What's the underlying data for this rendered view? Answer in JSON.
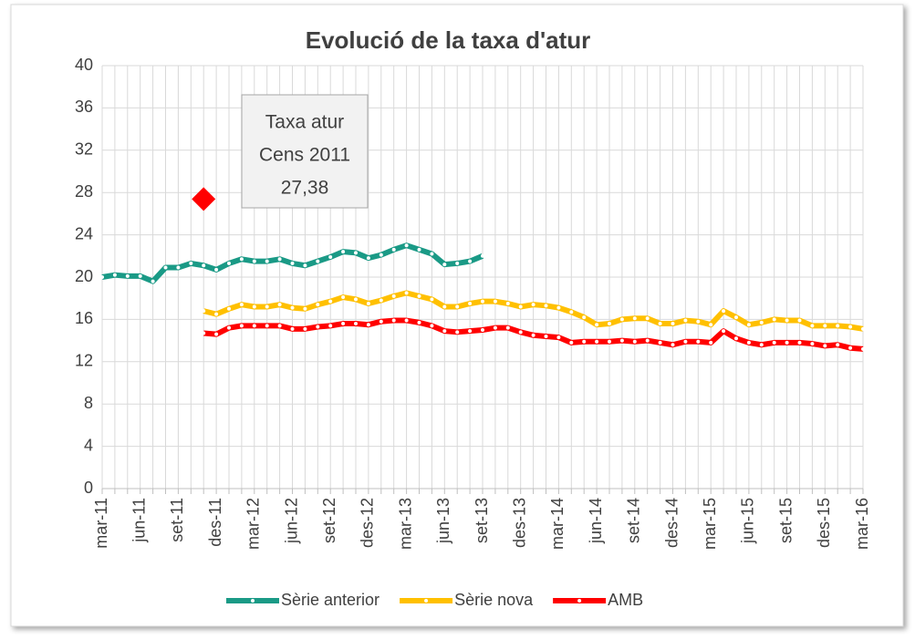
{
  "chart_data": {
    "type": "line",
    "title": "Evolució de la taxa d'atur",
    "categories": [
      "mar-11",
      null,
      null,
      "jun-11",
      null,
      null,
      "set-11",
      null,
      null,
      "des-11",
      null,
      null,
      "mar-12",
      null,
      null,
      "jun-12",
      null,
      null,
      "set-12",
      null,
      null,
      "des-12",
      null,
      null,
      "mar-13",
      null,
      null,
      "jun-13",
      null,
      null,
      "set-13",
      null,
      null,
      "des-13",
      null,
      null,
      "mar-14",
      null,
      null,
      "jun-14",
      null,
      null,
      "set-14",
      null,
      null,
      "des-14",
      null,
      null,
      "mar-15",
      null,
      null,
      "jun-15",
      null,
      null,
      "set-15",
      null,
      null,
      "des-15",
      null,
      null,
      "mar-16"
    ],
    "series": [
      {
        "name": "Sèrie anterior",
        "color": "#1a9a86",
        "values": [
          20.0,
          20.2,
          20.1,
          20.1,
          19.6,
          20.9,
          20.9,
          21.3,
          21.1,
          20.7,
          21.3,
          21.7,
          21.5,
          21.5,
          21.7,
          21.3,
          21.1,
          21.5,
          21.9,
          22.4,
          22.3,
          21.8,
          22.1,
          22.6,
          23.0,
          22.6,
          22.2,
          21.2,
          21.3,
          21.5,
          22.0,
          null,
          null,
          null,
          null,
          null,
          null,
          null,
          null,
          null,
          null,
          null,
          null,
          null,
          null,
          null,
          null,
          null,
          null,
          null,
          null,
          null,
          null,
          null,
          null,
          null,
          null,
          null,
          null,
          null,
          null
        ]
      },
      {
        "name": "Sèrie nova",
        "color": "#ffc000",
        "values": [
          null,
          null,
          null,
          null,
          null,
          null,
          null,
          null,
          16.8,
          16.5,
          17.0,
          17.4,
          17.2,
          17.2,
          17.4,
          17.1,
          17.0,
          17.4,
          17.7,
          18.1,
          17.9,
          17.5,
          17.8,
          18.2,
          18.5,
          18.2,
          17.9,
          17.2,
          17.2,
          17.5,
          17.7,
          17.7,
          17.5,
          17.2,
          17.4,
          17.3,
          17.1,
          16.7,
          16.2,
          15.5,
          15.6,
          16.0,
          16.1,
          16.1,
          15.6,
          15.6,
          15.9,
          15.8,
          15.5,
          16.8,
          16.2,
          15.5,
          15.7,
          16.0,
          15.9,
          15.9,
          15.4,
          15.4,
          15.4,
          15.3,
          15.1
        ]
      },
      {
        "name": "AMB",
        "color": "#ff0000",
        "values": [
          null,
          null,
          null,
          null,
          null,
          null,
          null,
          null,
          14.7,
          14.6,
          15.2,
          15.4,
          15.4,
          15.4,
          15.4,
          15.1,
          15.1,
          15.3,
          15.4,
          15.6,
          15.6,
          15.5,
          15.8,
          15.9,
          15.9,
          15.7,
          15.4,
          14.9,
          14.8,
          14.9,
          15.0,
          15.2,
          15.2,
          14.8,
          14.5,
          14.4,
          14.3,
          13.8,
          13.9,
          13.9,
          13.9,
          14.0,
          13.9,
          14.0,
          13.8,
          13.6,
          13.9,
          13.9,
          13.8,
          14.9,
          14.2,
          13.8,
          13.6,
          13.8,
          13.8,
          13.8,
          13.7,
          13.5,
          13.6,
          13.3,
          13.2
        ]
      }
    ],
    "marker": {
      "color": "#ff0000",
      "values": [
        null,
        null,
        null,
        null,
        null,
        null,
        null,
        null,
        27.38,
        null,
        null,
        null,
        null,
        null,
        null,
        null,
        null,
        null,
        null,
        null,
        null,
        null,
        null,
        null,
        null,
        null,
        null,
        null,
        null,
        null,
        null,
        null,
        null,
        null,
        null,
        null,
        null,
        null,
        null,
        null,
        null,
        null,
        null,
        null,
        null,
        null,
        null,
        null,
        null,
        null,
        null,
        null,
        null,
        null,
        null,
        null,
        null,
        null,
        null,
        null,
        null
      ]
    },
    "annotation": [
      "Taxa atur",
      "Cens 2011",
      "27,38"
    ],
    "ylim": [
      0,
      40
    ],
    "yticks": [
      0,
      4,
      8,
      12,
      16,
      20,
      24,
      28,
      32,
      36,
      40
    ],
    "grid": true,
    "legend": "bottom"
  }
}
